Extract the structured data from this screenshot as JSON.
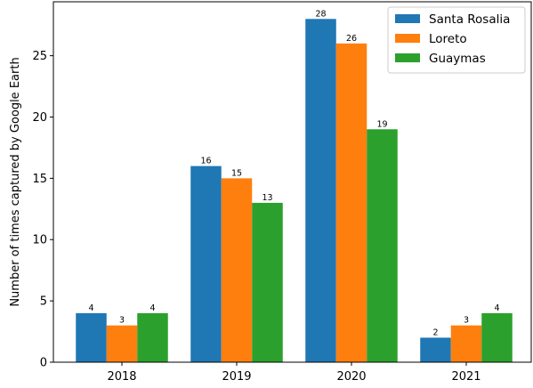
{
  "chart_data": {
    "type": "bar",
    "title": "",
    "xlabel": "",
    "ylabel": "Number of times captured by Google Earth",
    "categories": [
      "2018",
      "2019",
      "2020",
      "2021"
    ],
    "series": [
      {
        "name": "Santa Rosalia",
        "color": "#1f77b4",
        "values": [
          4,
          16,
          28,
          2
        ]
      },
      {
        "name": "Loreto",
        "color": "#ff7f0e",
        "values": [
          3,
          15,
          26,
          3
        ]
      },
      {
        "name": "Guaymas",
        "color": "#2ca02c",
        "values": [
          4,
          13,
          19,
          4
        ]
      }
    ],
    "ylim": [
      0,
      29.4
    ],
    "yticks": [
      0,
      5,
      10,
      15,
      20,
      25
    ],
    "grid": false,
    "legend_position": "top-right",
    "show_data_labels": true
  }
}
